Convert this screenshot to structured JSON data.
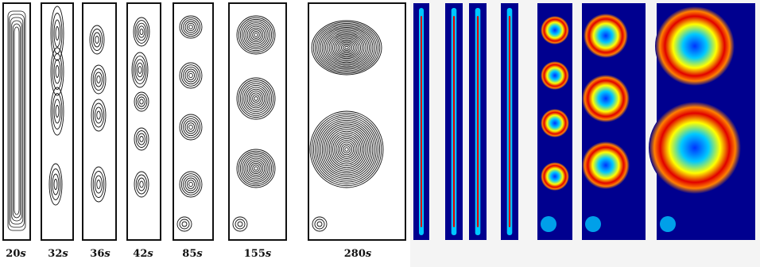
{
  "time_labels": [
    {
      "value": "20",
      "unit": "s"
    },
    {
      "value": "32",
      "unit": "s"
    },
    {
      "value": "36",
      "unit": "s"
    },
    {
      "value": "42",
      "unit": "s"
    },
    {
      "value": "85",
      "unit": "s"
    },
    {
      "value": "155",
      "unit": "s"
    },
    {
      "value": "280",
      "unit": "s"
    }
  ],
  "colors": {
    "contour_line": "#111111",
    "field_background": "#00008f",
    "colormap": [
      "#00008f",
      "#0033ff",
      "#00c8ff",
      "#5affa0",
      "#ffff00",
      "#ff8000",
      "#e00000"
    ]
  }
}
